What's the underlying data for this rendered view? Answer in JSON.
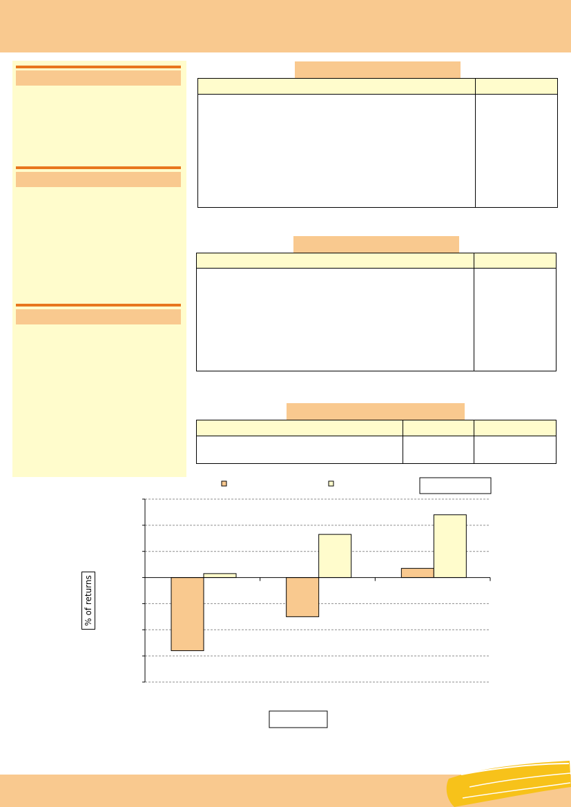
{
  "chart_data": {
    "type": "bar",
    "title": "",
    "xlabel": "",
    "ylabel": "% of returns",
    "categories": [
      "",
      "",
      ""
    ],
    "series": [
      {
        "values": [
          -28,
          -15,
          3.5
        ]
      },
      {
        "values": [
          1.5,
          16.5,
          24
        ]
      }
    ],
    "ylim": [
      -40,
      30
    ],
    "grid": true,
    "legend": "top",
    "colors": [
      "#f9c98f",
      "#fffccc"
    ]
  },
  "colors": {
    "accent_orange": "#e8761e",
    "band_peach": "#f9c98f",
    "panel_yellow": "#fffccc",
    "brush_yellow": "#f7c21a"
  }
}
